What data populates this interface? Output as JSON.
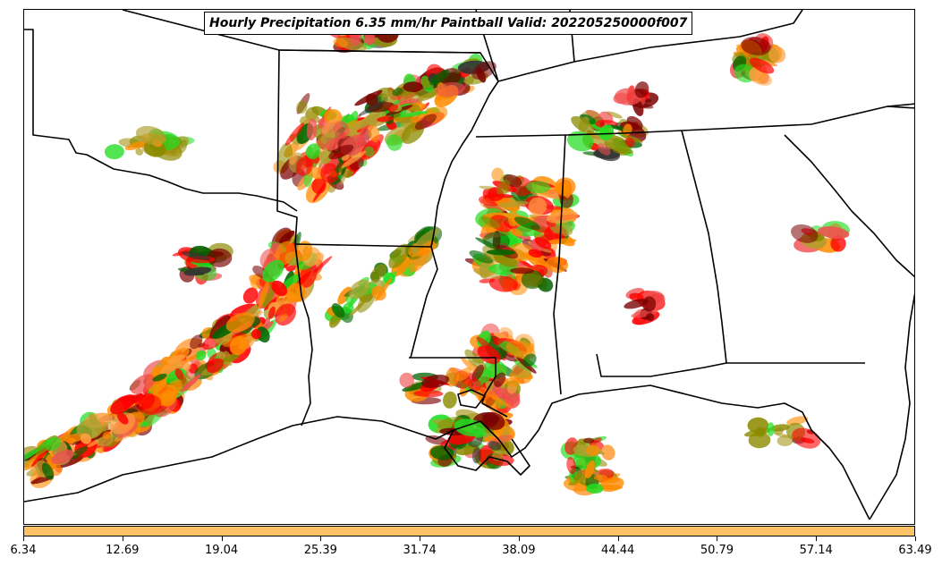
{
  "title": "Hourly Precipitation 6.35 mm/hr Paintball Valid: 202205250000f007",
  "colorbar": {
    "color": "#fdc266",
    "ticks": [
      "6.34",
      "12.69",
      "19.04",
      "25.39",
      "31.74",
      "38.09",
      "44.44",
      "50.79",
      "57.14",
      "63.49"
    ]
  },
  "palette": {
    "red": "#ff0000",
    "pink": "#f05050",
    "orange": "#ff8c00",
    "light-orange": "#ffa040",
    "olive": "#8b8b00",
    "yellow-olive": "#b0a030",
    "green": "#006400",
    "lime": "#22dd22",
    "dark-red": "#7a0000",
    "dark-gray": "#333333"
  }
}
